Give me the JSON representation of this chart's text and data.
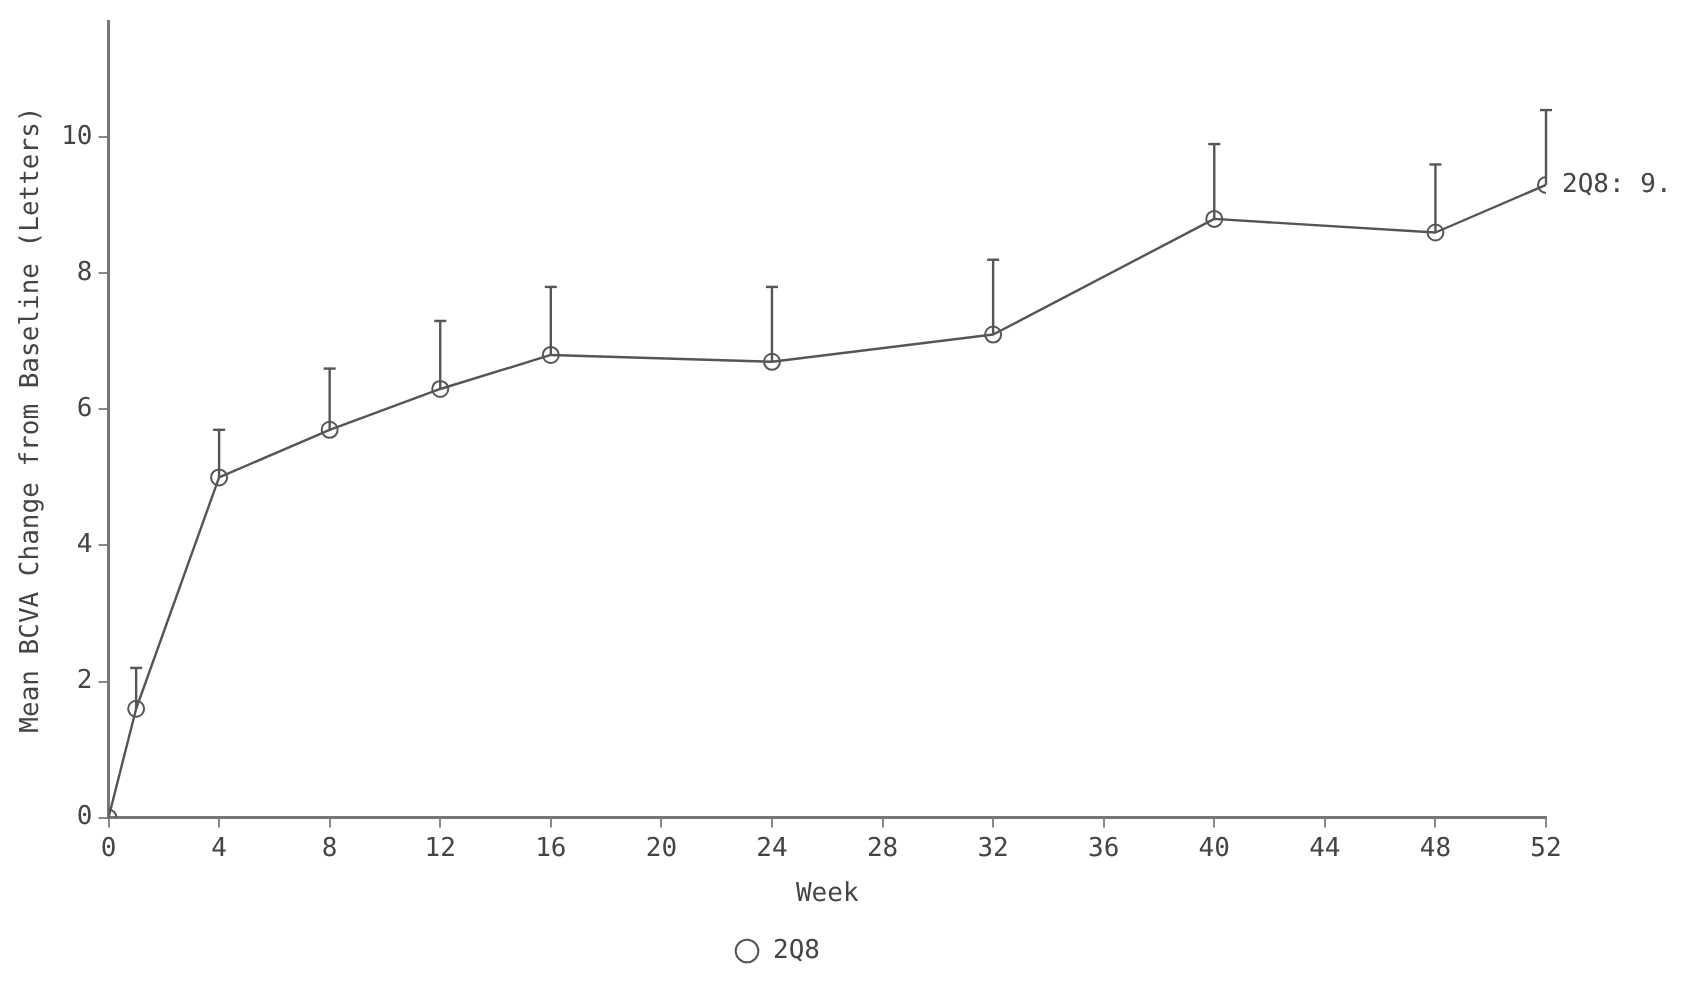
{
  "chart_data": {
    "type": "line",
    "xlabel": "Week",
    "ylabel": "Mean BCVA Change from Baseline (Letters)",
    "x": [
      0,
      1,
      4,
      8,
      12,
      16,
      24,
      32,
      40,
      48,
      52
    ],
    "series": [
      {
        "name": "2Q8",
        "color": "#555555",
        "values": [
          0,
          1.6,
          5.0,
          5.7,
          6.3,
          6.8,
          6.7,
          7.1,
          8.8,
          8.6,
          9.3
        ],
        "errors": [
          null,
          [
            1.6,
            2.2
          ],
          [
            5.0,
            5.7
          ],
          [
            5.7,
            6.6
          ],
          [
            6.3,
            7.3
          ],
          [
            6.8,
            7.8
          ],
          [
            6.7,
            7.8
          ],
          [
            7.1,
            8.2
          ],
          [
            8.8,
            9.9
          ],
          [
            8.6,
            9.6
          ],
          [
            9.3,
            10.4
          ]
        ]
      }
    ],
    "xlim": [
      0,
      52
    ],
    "xticks": [
      0,
      4,
      8,
      12,
      16,
      20,
      24,
      28,
      32,
      36,
      40,
      44,
      48,
      52
    ],
    "ylim": [
      0,
      11.7
    ],
    "yticks": [
      0,
      2,
      4,
      6,
      8,
      10
    ],
    "annotations": [
      {
        "text": "2Q8: 9.",
        "x": 52,
        "y": 9.3
      }
    ],
    "marker": "circle",
    "line_style": "solid",
    "grid": false,
    "legend": "bottom"
  }
}
